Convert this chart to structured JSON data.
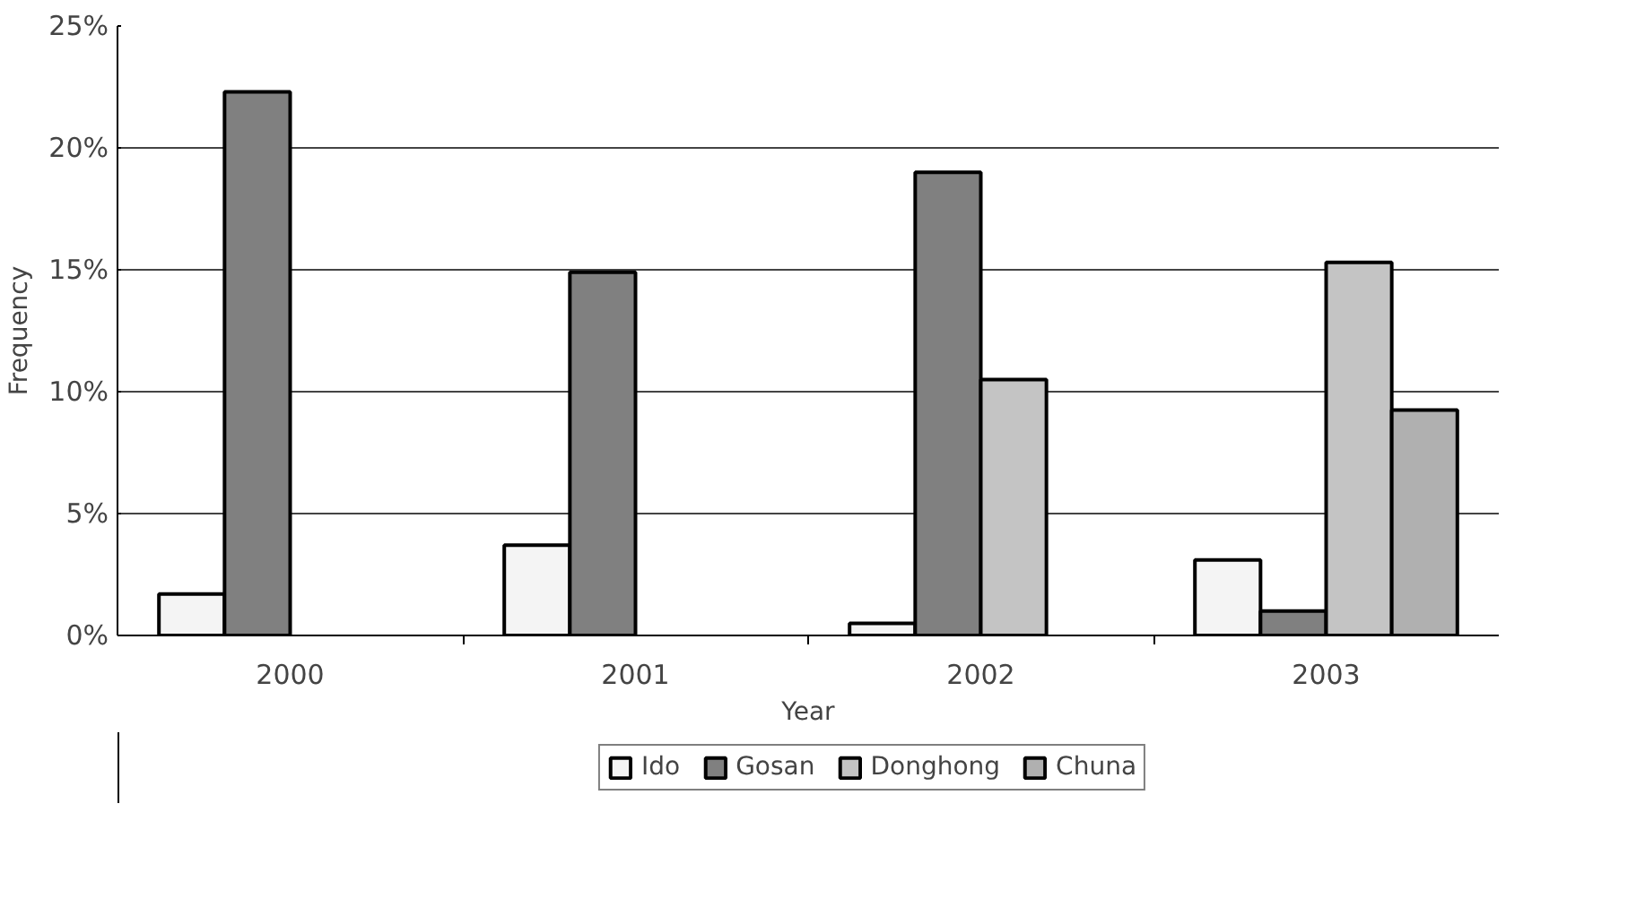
{
  "chart_data": {
    "type": "bar",
    "xlabel": "Year",
    "ylabel": "Frequency",
    "categories": [
      "2000",
      "2001",
      "2002",
      "2003"
    ],
    "series": [
      {
        "name": "Ido",
        "color": "#f4f4f4",
        "values": [
          1.7,
          3.7,
          0.5,
          3.1
        ]
      },
      {
        "name": "Gosan",
        "color": "#808080",
        "values": [
          22.3,
          14.9,
          19.0,
          1.0
        ]
      },
      {
        "name": "Donghong",
        "color": "#c4c4c4",
        "values": [
          null,
          null,
          10.5,
          15.3
        ]
      },
      {
        "name": "Chuna",
        "color": "#b0b0b0",
        "values": [
          null,
          null,
          null,
          9.25
        ]
      }
    ],
    "ylim": [
      0,
      25
    ],
    "yticks": [
      {
        "value": 0,
        "label": "0%"
      },
      {
        "value": 5,
        "label": "5%"
      },
      {
        "value": 10,
        "label": "10%"
      },
      {
        "value": 15,
        "label": "15%"
      },
      {
        "value": 20,
        "label": "20%"
      },
      {
        "value": 25,
        "label": "25%"
      }
    ],
    "grid": "y",
    "legend": "bottom"
  }
}
